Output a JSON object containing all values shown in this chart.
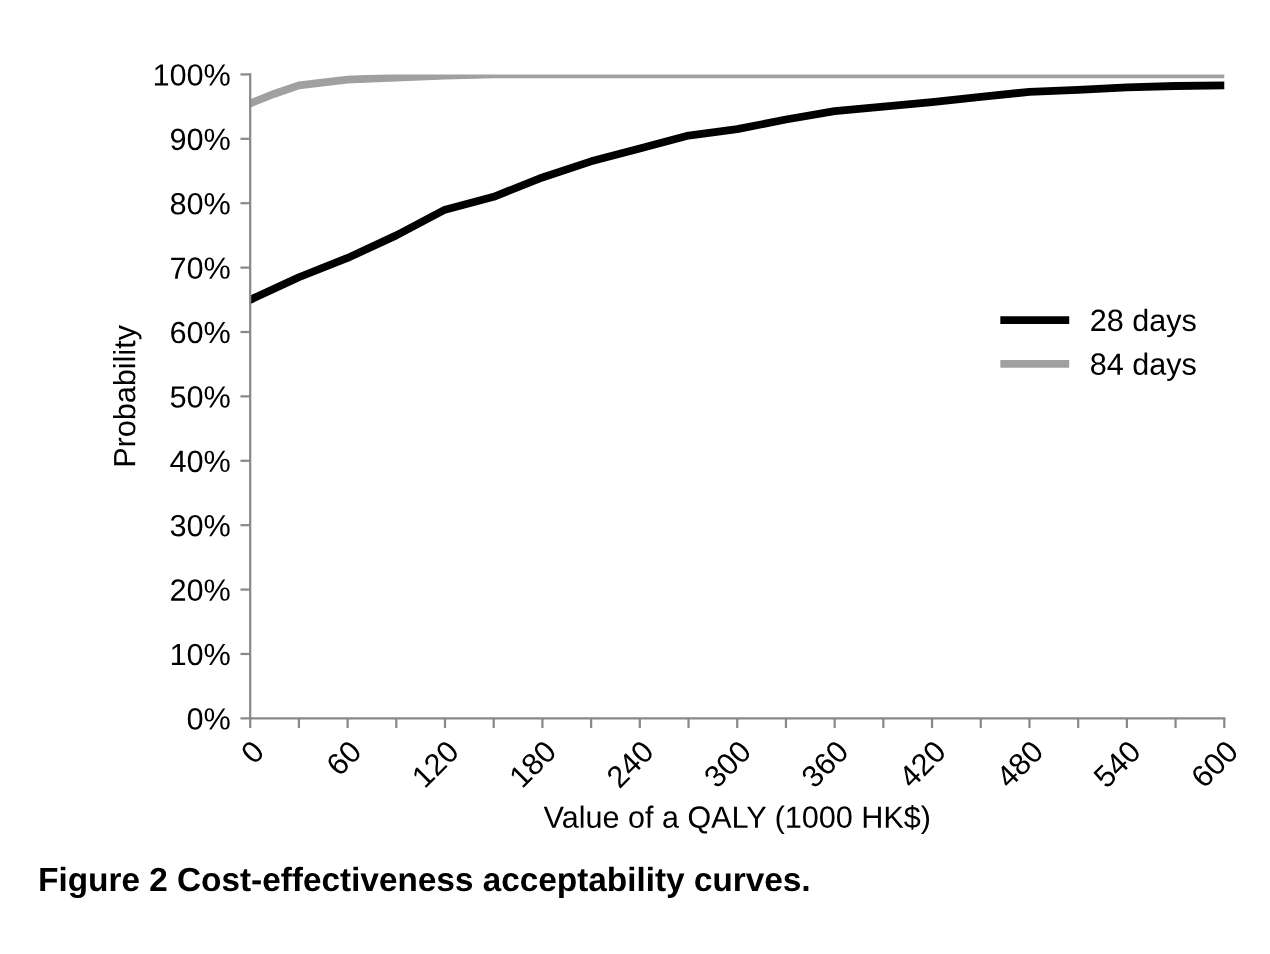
{
  "chart_data": {
    "type": "line",
    "xlabel": "Value of a QALY (1000 HK$)",
    "ylabel": "Probability",
    "annotations": [
      "Figure 2 Cost-effectiveness acceptability curves."
    ],
    "xlim": [
      0,
      600
    ],
    "xticks": [
      0,
      {
        "value": 30,
        "label": null
      },
      60,
      {
        "value": 90,
        "label": null
      },
      120,
      {
        "value": 150,
        "label": null
      },
      180,
      {
        "value": 210,
        "label": null
      },
      240,
      {
        "value": 270,
        "label": null
      },
      300,
      {
        "value": 330,
        "label": null
      },
      360,
      {
        "value": 390,
        "label": null
      },
      420,
      {
        "value": 450,
        "label": null
      },
      480,
      {
        "value": 510,
        "label": null
      },
      540,
      {
        "value": 570,
        "label": null
      },
      600
    ],
    "ylim": [
      0,
      100
    ],
    "yticks": [
      {
        "value": 0,
        "label": "0%"
      },
      {
        "value": 10,
        "label": "10%"
      },
      {
        "value": 20,
        "label": "20%"
      },
      {
        "value": 30,
        "label": "30%"
      },
      {
        "value": 40,
        "label": "40%"
      },
      {
        "value": 50,
        "label": "50%"
      },
      {
        "value": 60,
        "label": "60%"
      },
      {
        "value": 70,
        "label": "70%"
      },
      {
        "value": 80,
        "label": "80%"
      },
      {
        "value": 90,
        "label": "90%"
      },
      {
        "value": 100,
        "label": "100%"
      }
    ],
    "grid": false,
    "legend": "right",
    "marker": "none",
    "line_style": "solid",
    "series": [
      {
        "name": "28 days",
        "color": "#000000",
        "x": [
          0,
          30,
          60,
          90,
          120,
          150,
          180,
          210,
          240,
          270,
          300,
          330,
          360,
          390,
          420,
          450,
          480,
          510,
          540,
          570,
          600
        ],
        "values": [
          65,
          68.5,
          71.5,
          75,
          79,
          81,
          84,
          86.5,
          88.5,
          90.5,
          91.5,
          93,
          94.3,
          95,
          95.7,
          96.5,
          97.3,
          97.6,
          98,
          98.2,
          98.3
        ]
      },
      {
        "name": "84 days",
        "color": "#a0a0a0",
        "x": [
          0,
          15,
          30,
          60,
          90,
          120,
          150,
          600
        ],
        "values": [
          95.5,
          97,
          98.3,
          99.2,
          99.5,
          99.8,
          100,
          100
        ]
      }
    ]
  }
}
